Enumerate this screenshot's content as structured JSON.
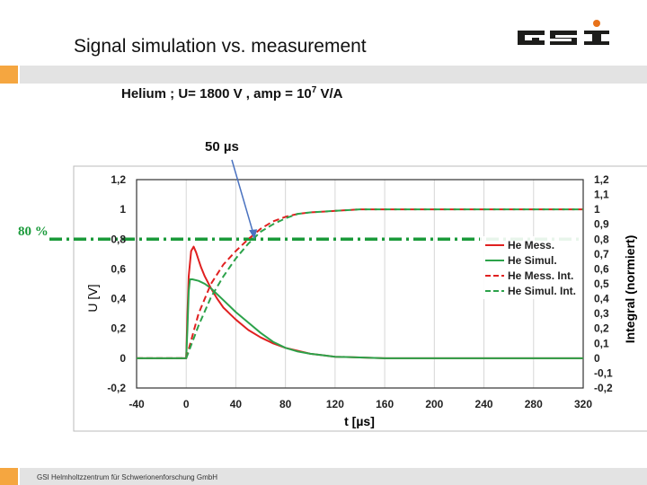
{
  "slide": {
    "title": "Signal simulation vs. measurement",
    "subtitle_main": "Helium  ;  U= 1800 V  , amp = 10",
    "subtitle_exp": "7",
    "subtitle_unit": " V/A",
    "time_annotation": "50 µs",
    "percent_label": "80 %",
    "footer": "GSI Helmholtzzentrum für Schwerionenforschung GmbH",
    "logo_text": "GSI"
  },
  "colors": {
    "red": "#e02020",
    "green": "#2ca24a",
    "threshold": "#1a9a3a",
    "arrow": "#4a72c0",
    "accent_orange": "#f5a640",
    "band_gray": "#e3e3e3"
  },
  "chart_data": {
    "type": "line",
    "xlabel": "t [µs]",
    "ylabel": "U [V]",
    "ylabel_right": "Integral (normiert)",
    "xlim": [
      -40,
      320
    ],
    "ylim": [
      -0.2,
      1.2
    ],
    "ylim_right": [
      -0.2,
      1.2
    ],
    "x_ticks": [
      "-40",
      "0",
      "40",
      "80",
      "120",
      "160",
      "200",
      "240",
      "280",
      "320"
    ],
    "y_ticks_left": [
      "1,2",
      "1",
      "0,8",
      "0,6",
      "0,4",
      "0,2",
      "0",
      "-0,2"
    ],
    "y_ticks_right": [
      "1,2",
      "1,1",
      "1",
      "0,9",
      "0,8",
      "0,7",
      "0,6",
      "0,5",
      "0,4",
      "0,3",
      "0,2",
      "0,1",
      "0",
      "-0,1",
      "-0,2"
    ],
    "threshold": 0.8,
    "annotation_x": 55,
    "grid": "vertical",
    "legend_position": "right",
    "series": [
      {
        "name": "He Mess.",
        "color": "#e02020",
        "dash": "solid",
        "x": [
          -40,
          0,
          1,
          2,
          4,
          6,
          8,
          10,
          12,
          15,
          20,
          25,
          30,
          40,
          50,
          60,
          70,
          80,
          90,
          100,
          110,
          120,
          140,
          160,
          200,
          240,
          280,
          320
        ],
        "y": [
          0,
          0,
          0.3,
          0.55,
          0.72,
          0.75,
          0.71,
          0.66,
          0.61,
          0.55,
          0.47,
          0.4,
          0.34,
          0.26,
          0.19,
          0.14,
          0.1,
          0.07,
          0.05,
          0.03,
          0.02,
          0.01,
          0.005,
          0,
          0,
          0,
          0,
          0
        ]
      },
      {
        "name": "He Simul.",
        "color": "#2ca24a",
        "dash": "solid",
        "x": [
          -40,
          0,
          1,
          2,
          3,
          5,
          10,
          15,
          20,
          25,
          30,
          40,
          50,
          60,
          70,
          80,
          90,
          100,
          110,
          120,
          140,
          160,
          200,
          240,
          280,
          320
        ],
        "y": [
          0,
          0,
          0.2,
          0.45,
          0.53,
          0.53,
          0.52,
          0.5,
          0.47,
          0.43,
          0.39,
          0.31,
          0.24,
          0.17,
          0.11,
          0.07,
          0.045,
          0.03,
          0.02,
          0.01,
          0.005,
          0,
          0,
          0,
          0,
          0
        ]
      },
      {
        "name": "He Mess. Int.",
        "color": "#e02020",
        "dash": "dashed",
        "x": [
          -40,
          0,
          10,
          20,
          30,
          40,
          50,
          60,
          70,
          80,
          90,
          100,
          120,
          140,
          160,
          200,
          240,
          280,
          320
        ],
        "y": [
          0,
          0,
          0.3,
          0.5,
          0.63,
          0.72,
          0.8,
          0.87,
          0.92,
          0.95,
          0.97,
          0.98,
          0.99,
          1.0,
          1.0,
          1.0,
          1.0,
          1.0,
          1.0
        ]
      },
      {
        "name": "He Simul. Int.",
        "color": "#2ca24a",
        "dash": "dashed",
        "x": [
          -40,
          0,
          10,
          20,
          30,
          40,
          50,
          60,
          70,
          80,
          90,
          100,
          120,
          140,
          160,
          200,
          240,
          280,
          320
        ],
        "y": [
          0,
          0,
          0.22,
          0.41,
          0.55,
          0.67,
          0.77,
          0.85,
          0.9,
          0.94,
          0.97,
          0.98,
          0.99,
          1.0,
          1.0,
          1.0,
          1.0,
          1.0,
          1.0
        ]
      }
    ]
  }
}
